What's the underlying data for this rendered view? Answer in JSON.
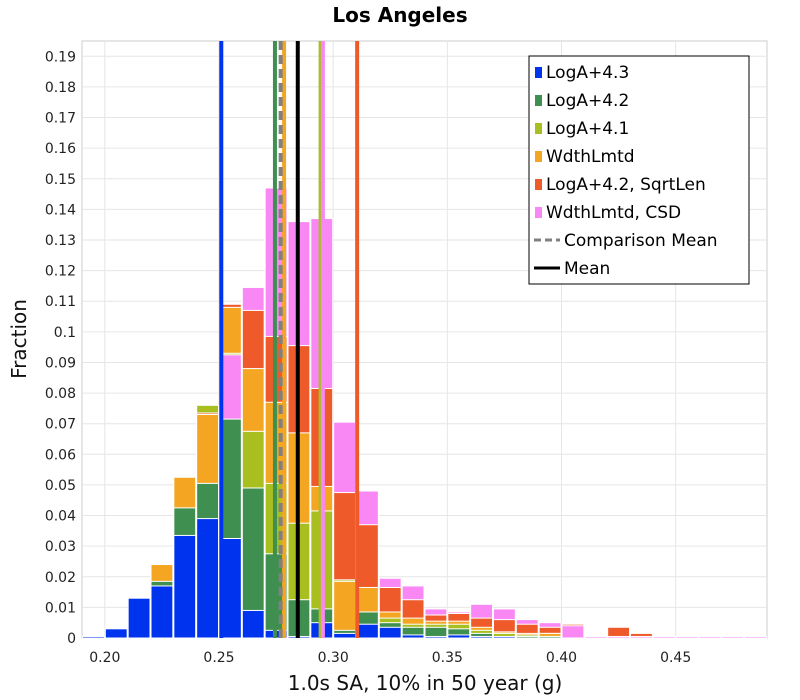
{
  "chart_data": {
    "type": "bar",
    "title": "Los Angeles",
    "xlabel": "1.0s SA, 10% in 50 year (g)",
    "ylabel": "Fraction",
    "xlim": [
      0.19,
      0.49
    ],
    "ylim": [
      0,
      0.195
    ],
    "x_ticks": [
      "0.20",
      "0.25",
      "0.30",
      "0.35",
      "0.40",
      "0.45"
    ],
    "x_tick_values": [
      0.2,
      0.25,
      0.3,
      0.35,
      0.4,
      0.45
    ],
    "y_ticks": [
      "0",
      "0.01",
      "0.02",
      "0.03",
      "0.04",
      "0.05",
      "0.06",
      "0.07",
      "0.08",
      "0.09",
      "0.1",
      "0.11",
      "0.12",
      "0.13",
      "0.14",
      "0.15",
      "0.16",
      "0.17",
      "0.18",
      "0.19"
    ],
    "y_tick_values": [
      0,
      0.01,
      0.02,
      0.03,
      0.04,
      0.05,
      0.06,
      0.07,
      0.08,
      0.09,
      0.1,
      0.11,
      0.12,
      0.13,
      0.14,
      0.15,
      0.16,
      0.17,
      0.18,
      0.19
    ],
    "grid": true,
    "legend_position": "top-right",
    "bin_centers": [
      0.195,
      0.205,
      0.215,
      0.225,
      0.235,
      0.245,
      0.255,
      0.265,
      0.275,
      0.285,
      0.295,
      0.305,
      0.315,
      0.325,
      0.335,
      0.345,
      0.355,
      0.365,
      0.375,
      0.385,
      0.395,
      0.405,
      0.415,
      0.425,
      0.435,
      0.445,
      0.455,
      0.465,
      0.475,
      0.485
    ],
    "bin_width": 0.01,
    "series": [
      {
        "name": "LogA+4.3",
        "color": "#0033ee",
        "values": [
          0.0005,
          0.003,
          0.013,
          0.017,
          0.0335,
          0.039,
          0.0325,
          0.009,
          0.0025,
          0.0005,
          0.005,
          0.0015,
          0.0045,
          0.0035,
          0.001,
          0.0005,
          0.001,
          0.0005,
          0.0005,
          0,
          0,
          0,
          0,
          0,
          0,
          0,
          0,
          0,
          0,
          0
        ]
      },
      {
        "name": "LogA+4.2",
        "color": "#3f8f50",
        "values": [
          0,
          0,
          0,
          0.0185,
          0.0425,
          0.0505,
          0.0715,
          0.049,
          0.0275,
          0.0125,
          0.0095,
          0.0025,
          0.0085,
          0.005,
          0.0035,
          0.0035,
          0.003,
          0.0015,
          0.0015,
          0.0005,
          0.0005,
          0,
          0,
          0,
          0,
          0,
          0,
          0,
          0,
          0
        ]
      },
      {
        "name": "LogA+4.1",
        "color": "#a8bf1f",
        "values": [
          0,
          0,
          0,
          0,
          0,
          0.076,
          0.093,
          0.0675,
          0.0505,
          0.0375,
          0.0415,
          0.019,
          0.0165,
          0.0065,
          0.0045,
          0.0045,
          0.0045,
          0.0025,
          0.0015,
          0.001,
          0.0015,
          0,
          0,
          0,
          0,
          0,
          0,
          0,
          0,
          0
        ]
      },
      {
        "name": "WdthLmtd",
        "color": "#f4a623",
        "values": [
          0,
          0,
          0,
          0.024,
          0.0525,
          0.073,
          0.108,
          0.088,
          0.077,
          0.067,
          0.0495,
          0.0185,
          0.0165,
          0.0085,
          0.0065,
          0.0055,
          0.0055,
          0.0035,
          0.002,
          0.0015,
          0.0015,
          0,
          0,
          0,
          0,
          0,
          0,
          0,
          0,
          0
        ]
      },
      {
        "name": "LogA+4.2, SqrtLen",
        "color": "#ee5a2a",
        "values": [
          0,
          0,
          0,
          0,
          0,
          0.0735,
          0.109,
          0.107,
          0.0985,
          0.0955,
          0.0815,
          0.0475,
          0.037,
          0.0165,
          0.0125,
          0.0075,
          0.008,
          0.0065,
          0.006,
          0.0045,
          0.0035,
          0.0045,
          0.0005,
          0.0035,
          0.0015,
          0,
          0.0005,
          0,
          0,
          0
        ]
      },
      {
        "name": "WdthLmtd, CSD",
        "color": "#fa88f4",
        "values": [
          0,
          0,
          0,
          0,
          0,
          0,
          0.0925,
          0.1145,
          0.147,
          0.136,
          0.137,
          0.0705,
          0.048,
          0.0195,
          0.017,
          0.0095,
          0.0085,
          0.011,
          0.0095,
          0.006,
          0.005,
          0.004,
          0.0005,
          0.0005,
          0.0005,
          0.0005,
          0.0005,
          0.0005,
          0.0005,
          0.0005
        ]
      }
    ],
    "vertical_lines": [
      {
        "x": 0.251,
        "color": "#0033ee",
        "style": "solid"
      },
      {
        "x": 0.2745,
        "color": "#3f8f50",
        "style": "solid"
      },
      {
        "x": 0.2945,
        "color": "#a8bf1f",
        "style": "solid"
      },
      {
        "x": 0.2785,
        "color": "#f4a623",
        "style": "solid"
      },
      {
        "x": 0.3105,
        "color": "#ee5a2a",
        "style": "solid"
      },
      {
        "x": 0.2955,
        "color": "#fa88f4",
        "style": "solid"
      },
      {
        "x": 0.277,
        "color": "#808080",
        "style": "dashed"
      },
      {
        "x": 0.2845,
        "color": "#000000",
        "style": "solid"
      }
    ],
    "legend": [
      {
        "label": "LogA+4.3",
        "color": "#0033ee",
        "kind": "box"
      },
      {
        "label": "LogA+4.2",
        "color": "#3f8f50",
        "kind": "box"
      },
      {
        "label": "LogA+4.1",
        "color": "#a8bf1f",
        "kind": "box"
      },
      {
        "label": "WdthLmtd",
        "color": "#f4a623",
        "kind": "box"
      },
      {
        "label": "LogA+4.2, SqrtLen",
        "color": "#ee5a2a",
        "kind": "box"
      },
      {
        "label": "WdthLmtd, CSD",
        "color": "#fa88f4",
        "kind": "box"
      },
      {
        "label": "Comparison Mean",
        "color": "#808080",
        "kind": "dashed"
      },
      {
        "label": "Mean",
        "color": "#000000",
        "kind": "solid"
      }
    ]
  }
}
